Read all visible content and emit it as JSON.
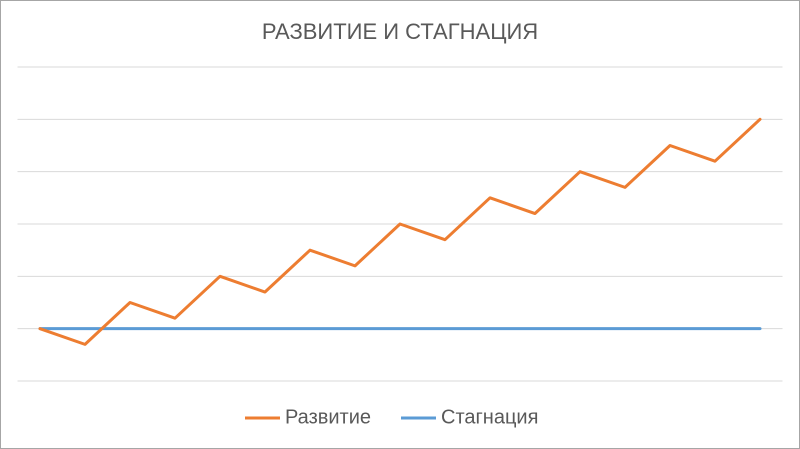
{
  "chart_data": {
    "type": "line",
    "title": "РАЗВИТИЕ И СТАГНАЦИЯ",
    "categories": [
      null,
      null,
      null,
      null,
      null,
      null,
      null,
      null,
      null,
      null,
      null,
      null,
      null,
      null,
      null,
      null,
      null
    ],
    "series": [
      {
        "name": "Развитие",
        "color": "#ed7d31",
        "values": [
          0,
          -0.3,
          0.5,
          0.2,
          1,
          0.7,
          1.5,
          1.2,
          2,
          1.7,
          2.5,
          2.2,
          3,
          2.7,
          3.5,
          3.2,
          4
        ]
      },
      {
        "name": "Стагнация",
        "color": "#5b9bd5",
        "values": [
          0,
          0,
          0,
          0,
          0,
          0,
          0,
          0,
          0,
          0,
          0,
          0,
          0,
          0,
          0,
          0,
          0
        ]
      }
    ],
    "ylim": [
      -1,
      5
    ],
    "yticks": [
      -1,
      0,
      1,
      2,
      3,
      4,
      5
    ],
    "grid": true,
    "legend": "bottom"
  }
}
